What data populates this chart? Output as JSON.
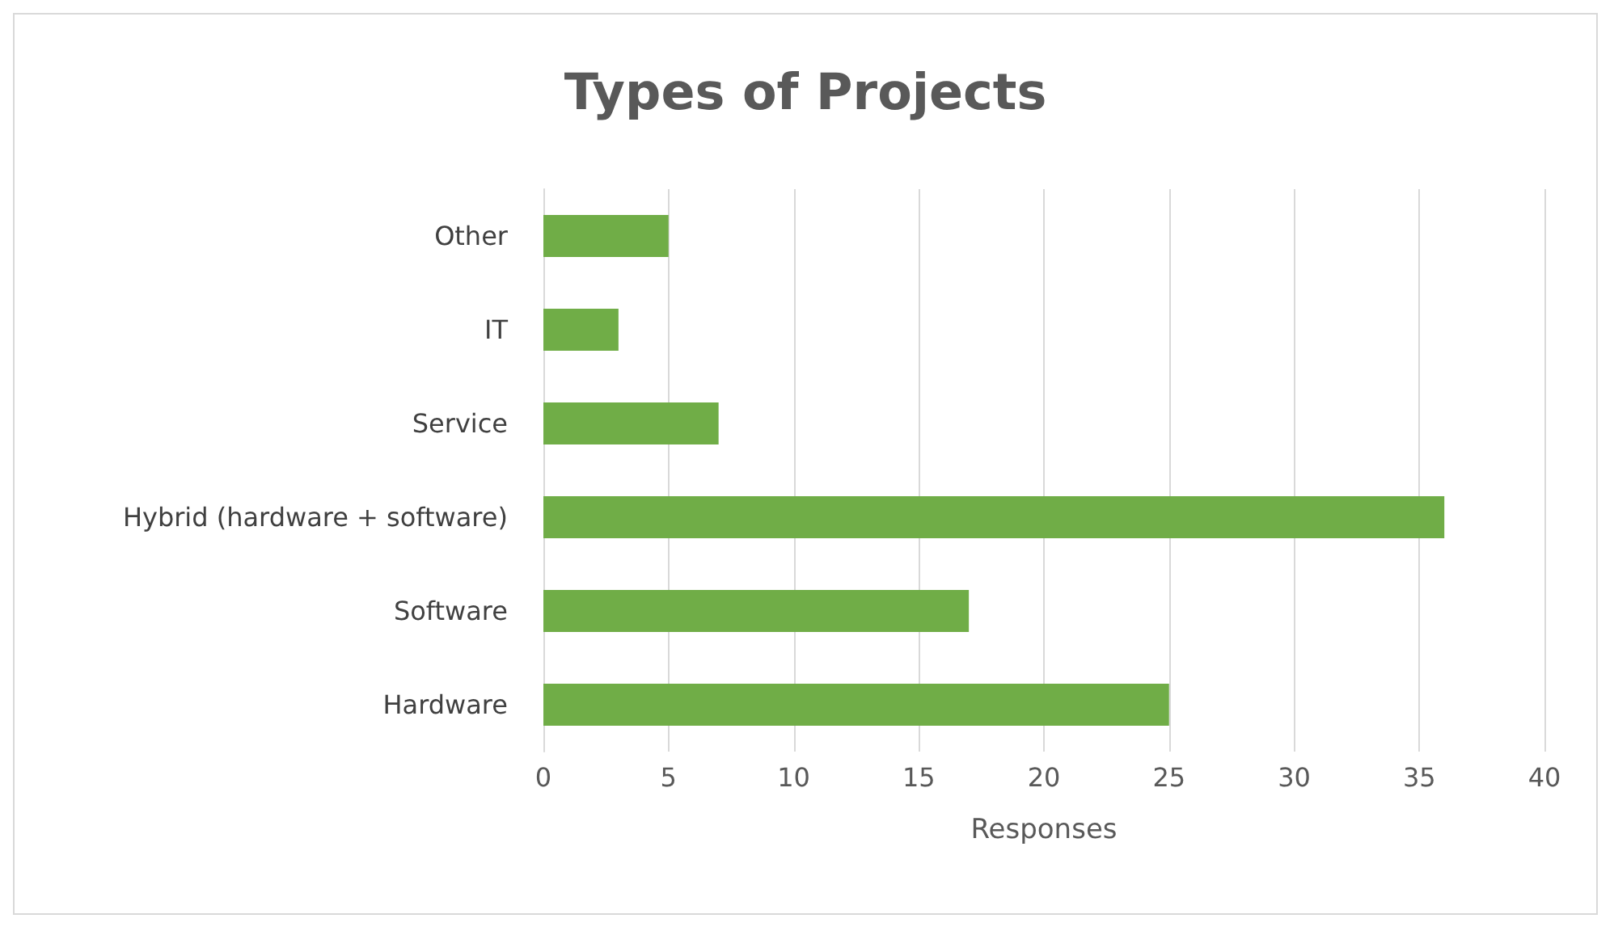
{
  "chart_data": {
    "type": "bar",
    "orientation": "horizontal",
    "title": "Types of Projects",
    "xlabel": "Responses",
    "categories": [
      "Other",
      "IT",
      "Service",
      "Hybrid (hardware + software)",
      "Software",
      "Hardware"
    ],
    "values": [
      5,
      3,
      7,
      36,
      17,
      25
    ],
    "color": "#70ad47",
    "xlim": [
      0,
      40
    ],
    "xticks": [
      0,
      5,
      10,
      15,
      20,
      25,
      30,
      35,
      40
    ],
    "grid": "x"
  }
}
